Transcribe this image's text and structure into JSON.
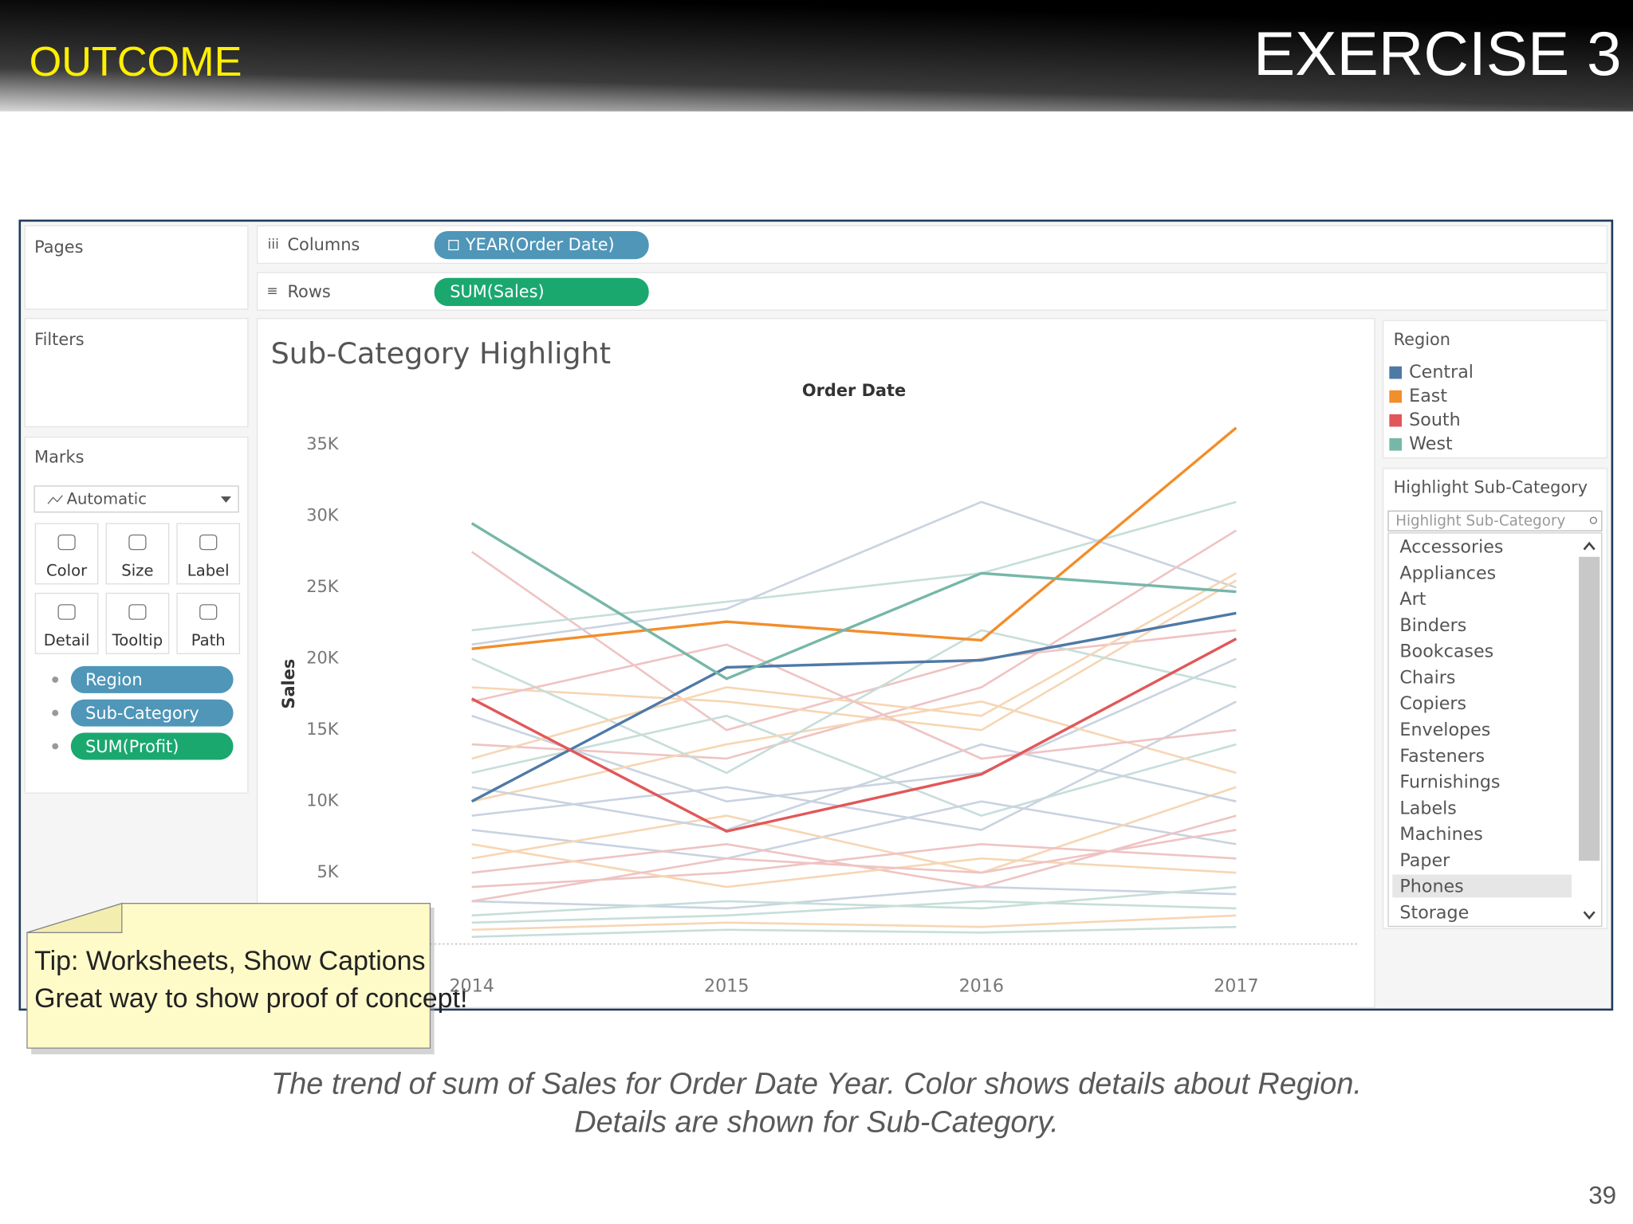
{
  "header": {
    "section": "OUTCOME",
    "title": "EXERCISE 3"
  },
  "panels": {
    "pages": "Pages",
    "filters": "Filters",
    "marks": {
      "title": "Marks",
      "mark_type": "Automatic",
      "buttons": [
        "Color",
        "Size",
        "Label",
        "Detail",
        "Tooltip",
        "Path"
      ],
      "pills": [
        "Region",
        "Sub-Category",
        "SUM(Profit)"
      ]
    }
  },
  "shelves": {
    "columns": {
      "label": "Columns",
      "pill": "YEAR(Order Date)"
    },
    "rows": {
      "label": "Rows",
      "pill": "SUM(Sales)"
    }
  },
  "chart": {
    "type": "line",
    "title": "Sub-Category Highlight",
    "x_label": "Order Date",
    "y_label": "Sales",
    "legend_title": "Region",
    "categories": [
      "2014",
      "2015",
      "2016",
      "2017"
    ],
    "ylim": [
      0,
      37000
    ],
    "yticks": [
      {
        "value": 5000,
        "label": "5K"
      },
      {
        "value": 10000,
        "label": "10K"
      },
      {
        "value": 15000,
        "label": "15K"
      },
      {
        "value": 20000,
        "label": "20K"
      },
      {
        "value": 25000,
        "label": "25K"
      },
      {
        "value": 30000,
        "label": "30K"
      },
      {
        "value": 35000,
        "label": "35K"
      }
    ],
    "series": [
      {
        "name": "Central",
        "color": "#4e79a7",
        "values": [
          10000,
          19400,
          19900,
          23200
        ]
      },
      {
        "name": "East",
        "color": "#f28e2b",
        "values": [
          20700,
          22600,
          21300,
          36200
        ]
      },
      {
        "name": "South",
        "color": "#e15759",
        "values": [
          17200,
          7900,
          11900,
          21400
        ]
      },
      {
        "name": "West",
        "color": "#76b7a8",
        "values": [
          29500,
          18600,
          26000,
          24700
        ]
      }
    ],
    "background_series": [
      {
        "color": "#c9d3e0",
        "values": [
          3000,
          2500,
          4000,
          3500
        ]
      },
      {
        "color": "#f6d6b4",
        "values": [
          1000,
          1500,
          1200,
          2000
        ]
      },
      {
        "color": "#efc3c3",
        "values": [
          27500,
          15000,
          20000,
          22000
        ]
      },
      {
        "color": "#c6ded9",
        "values": [
          22000,
          24000,
          26000,
          31000
        ]
      },
      {
        "color": "#c9d3e0",
        "values": [
          21000,
          23500,
          31000,
          25000
        ]
      },
      {
        "color": "#f6d6b4",
        "values": [
          18000,
          17000,
          15000,
          25500
        ]
      },
      {
        "color": "#efc3c3",
        "values": [
          14000,
          13000,
          18000,
          29000
        ]
      },
      {
        "color": "#c6ded9",
        "values": [
          12000,
          16000,
          9000,
          14000
        ]
      },
      {
        "color": "#c9d3e0",
        "values": [
          8000,
          6000,
          10000,
          7000
        ]
      },
      {
        "color": "#f6d6b4",
        "values": [
          6000,
          9000,
          5000,
          11000
        ]
      },
      {
        "color": "#efc3c3",
        "values": [
          4000,
          5000,
          7000,
          6000
        ]
      },
      {
        "color": "#c6ded9",
        "values": [
          2000,
          3000,
          2500,
          4000
        ]
      },
      {
        "color": "#c9d3e0",
        "values": [
          16000,
          10000,
          12000,
          20000
        ]
      },
      {
        "color": "#f6d6b4",
        "values": [
          10000,
          14000,
          17000,
          12000
        ]
      },
      {
        "color": "#efc3c3",
        "values": [
          5000,
          7000,
          4000,
          9000
        ]
      },
      {
        "color": "#c6ded9",
        "values": [
          20000,
          12000,
          22000,
          18000
        ]
      },
      {
        "color": "#c9d3e0",
        "values": [
          9000,
          11000,
          8000,
          17000
        ]
      },
      {
        "color": "#f6d6b4",
        "values": [
          7000,
          4000,
          6000,
          5000
        ]
      },
      {
        "color": "#efc3c3",
        "values": [
          3000,
          6000,
          5000,
          8000
        ]
      },
      {
        "color": "#c6ded9",
        "values": [
          1500,
          2000,
          3000,
          2500
        ]
      },
      {
        "color": "#c9d3e0",
        "values": [
          11000,
          8000,
          14000,
          10000
        ]
      },
      {
        "color": "#f6d6b4",
        "values": [
          13000,
          18000,
          16000,
          26000
        ]
      },
      {
        "color": "#efc3c3",
        "values": [
          17000,
          21000,
          13000,
          15000
        ]
      },
      {
        "color": "#c6ded9",
        "values": [
          500,
          1000,
          800,
          1200
        ]
      }
    ]
  },
  "highlight": {
    "title": "Highlight Sub-Category",
    "placeholder": "Highlight Sub-Category",
    "items": [
      "Accessories",
      "Appliances",
      "Art",
      "Binders",
      "Bookcases",
      "Chairs",
      "Copiers",
      "Envelopes",
      "Fasteners",
      "Furnishings",
      "Labels",
      "Machines",
      "Paper",
      "Phones",
      "Storage"
    ],
    "selected_index": 13
  },
  "tip": {
    "lines": [
      "Tip: Worksheets, Show Captions",
      "Great way to show proof of concept!"
    ]
  },
  "caption": {
    "lines": [
      "The trend of sum of Sales for Order Date Year. Color shows details about Region.",
      "Details are shown for Sub-Category."
    ]
  },
  "page_number": 39
}
